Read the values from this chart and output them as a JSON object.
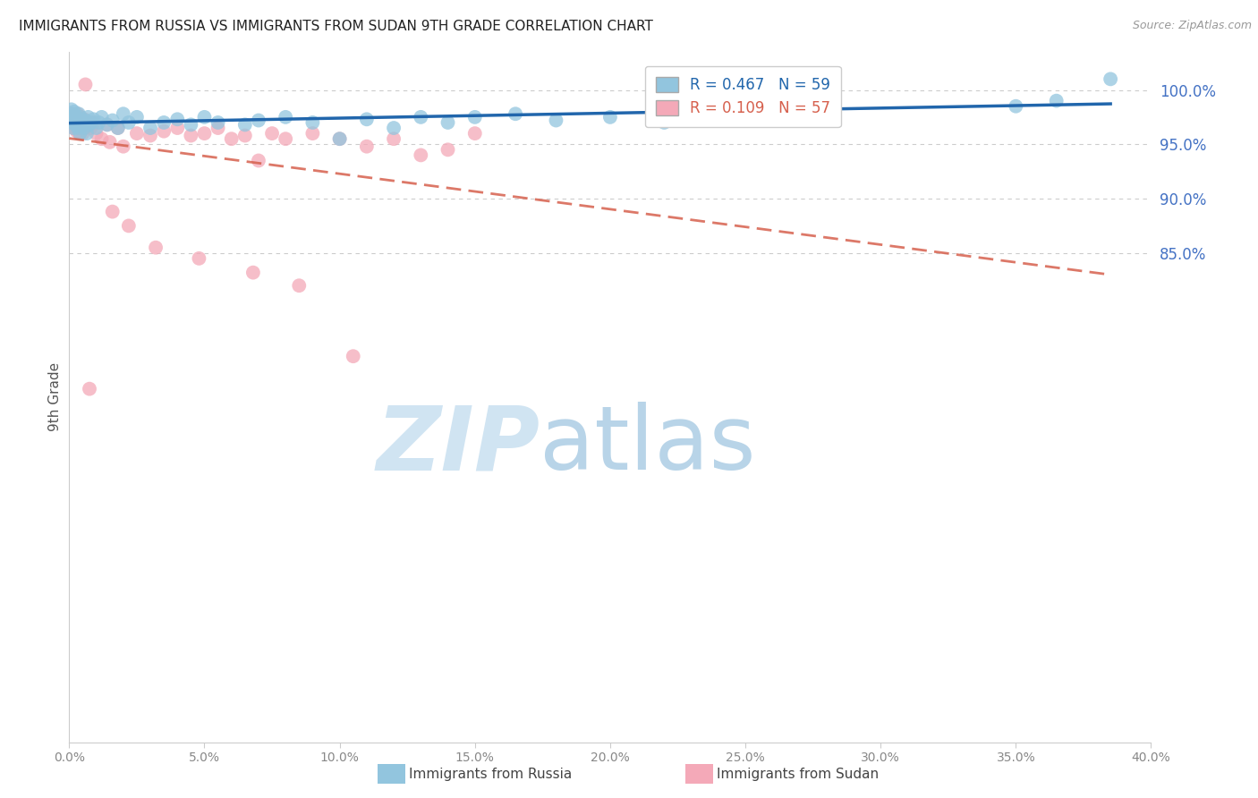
{
  "title": "IMMIGRANTS FROM RUSSIA VS IMMIGRANTS FROM SUDAN 9TH GRADE CORRELATION CHART",
  "source": "Source: ZipAtlas.com",
  "ylabel": "9th Grade",
  "russia_R": 0.467,
  "russia_N": 59,
  "sudan_R": 0.109,
  "sudan_N": 57,
  "russia_color": "#92c5de",
  "sudan_color": "#f4a9b8",
  "russia_line_color": "#2166ac",
  "sudan_line_color": "#d6604d",
  "grid_color": "#cccccc",
  "right_axis_color": "#4472c4",
  "watermark_zip_color": "#d0e4f2",
  "watermark_atlas_color": "#b8d4e8",
  "xlim": [
    0.0,
    40.0
  ],
  "ylim": [
    40.0,
    103.5
  ],
  "yticks": [
    85.0,
    90.0,
    95.0,
    100.0
  ],
  "xticks": [
    0.0,
    5.0,
    10.0,
    15.0,
    20.0,
    25.0,
    30.0,
    35.0,
    40.0
  ],
  "russia_x": [
    0.05,
    0.08,
    0.1,
    0.12,
    0.15,
    0.18,
    0.2,
    0.22,
    0.25,
    0.28,
    0.3,
    0.32,
    0.35,
    0.38,
    0.4,
    0.42,
    0.45,
    0.48,
    0.5,
    0.55,
    0.6,
    0.65,
    0.7,
    0.75,
    0.8,
    0.9,
    1.0,
    1.1,
    1.2,
    1.4,
    1.6,
    1.8,
    2.0,
    2.2,
    2.5,
    3.0,
    3.5,
    4.0,
    4.5,
    5.0,
    5.5,
    6.5,
    7.0,
    8.0,
    9.0,
    10.0,
    11.0,
    12.0,
    13.0,
    14.0,
    15.0,
    16.5,
    18.0,
    20.0,
    22.0,
    24.0,
    35.0,
    36.5,
    38.5
  ],
  "russia_y": [
    97.5,
    98.2,
    97.0,
    97.8,
    96.5,
    98.0,
    97.2,
    97.6,
    96.8,
    97.4,
    97.0,
    96.5,
    97.8,
    97.2,
    96.0,
    97.5,
    97.3,
    96.8,
    97.0,
    96.5,
    97.2,
    96.0,
    97.5,
    96.8,
    97.0,
    97.3,
    96.5,
    97.0,
    97.5,
    96.8,
    97.2,
    96.5,
    97.8,
    97.0,
    97.5,
    96.5,
    97.0,
    97.3,
    96.8,
    97.5,
    97.0,
    96.8,
    97.2,
    97.5,
    97.0,
    95.5,
    97.3,
    96.5,
    97.5,
    97.0,
    97.5,
    97.8,
    97.2,
    97.5,
    97.0,
    97.5,
    98.5,
    99.0,
    101.0
  ],
  "sudan_x": [
    0.05,
    0.07,
    0.1,
    0.12,
    0.15,
    0.18,
    0.2,
    0.22,
    0.25,
    0.28,
    0.3,
    0.32,
    0.35,
    0.38,
    0.4,
    0.45,
    0.5,
    0.55,
    0.6,
    0.65,
    0.7,
    0.8,
    0.9,
    1.0,
    1.2,
    1.4,
    1.5,
    1.8,
    2.0,
    2.5,
    3.0,
    3.5,
    4.0,
    4.5,
    5.0,
    5.5,
    6.0,
    6.5,
    7.0,
    7.5,
    8.0,
    9.0,
    10.0,
    11.0,
    12.0,
    13.0,
    14.0,
    15.0,
    1.6,
    2.2,
    3.2,
    4.8,
    6.8,
    8.5,
    10.5,
    0.6,
    0.75
  ],
  "sudan_y": [
    97.8,
    97.2,
    97.5,
    97.0,
    96.5,
    97.3,
    96.8,
    97.5,
    97.0,
    96.2,
    97.8,
    96.5,
    97.2,
    96.0,
    97.5,
    96.8,
    96.0,
    97.3,
    96.5,
    97.0,
    96.8,
    96.5,
    97.0,
    96.0,
    95.5,
    96.8,
    95.2,
    96.5,
    94.8,
    96.0,
    95.8,
    96.2,
    96.5,
    95.8,
    96.0,
    96.5,
    95.5,
    95.8,
    93.5,
    96.0,
    95.5,
    96.0,
    95.5,
    94.8,
    95.5,
    94.0,
    94.5,
    96.0,
    88.8,
    87.5,
    85.5,
    84.5,
    83.2,
    82.0,
    75.5,
    100.5,
    72.5
  ]
}
